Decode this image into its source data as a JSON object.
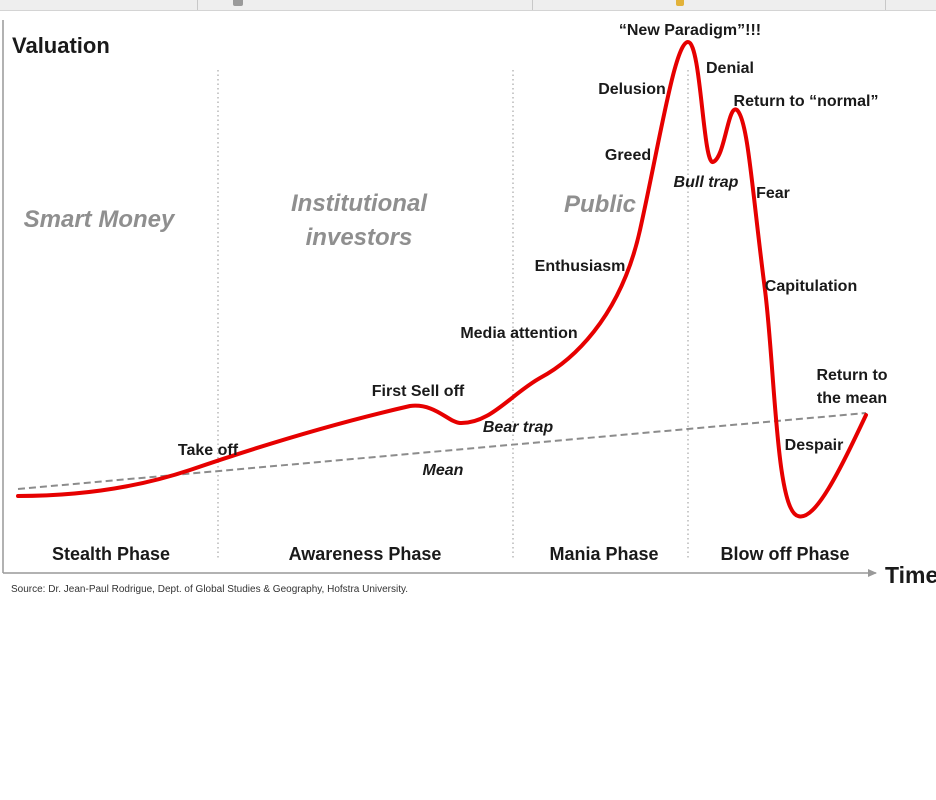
{
  "diagram": {
    "y_axis_label": "Valuation",
    "x_axis_label": "Time",
    "source": "Source: Dr. Jean-Paul Rodrigue, Dept. of Global Studies & Geography, Hofstra University.",
    "mean_label": "Mean",
    "colors": {
      "curve": "#e60000",
      "mean_line": "#8c8c8c",
      "axis": "#999999",
      "investor_text": "#8f8f8f"
    },
    "phases": [
      "Stealth Phase",
      "Awareness Phase",
      "Mania Phase",
      "Blow off Phase"
    ],
    "investors": [
      "Smart Money",
      [
        "Institutional",
        "investors"
      ],
      "Public"
    ],
    "annotations": [
      "Take off",
      "First Sell off",
      "Bear trap",
      "Media attention",
      "Enthusiasm",
      "Greed",
      "Delusion",
      "“New Paradigm”!!!",
      "Denial",
      "Return to “normal”",
      "Bull trap",
      "Fear",
      "Capitulation",
      [
        "Return to",
        "the mean"
      ],
      "Despair"
    ]
  }
}
